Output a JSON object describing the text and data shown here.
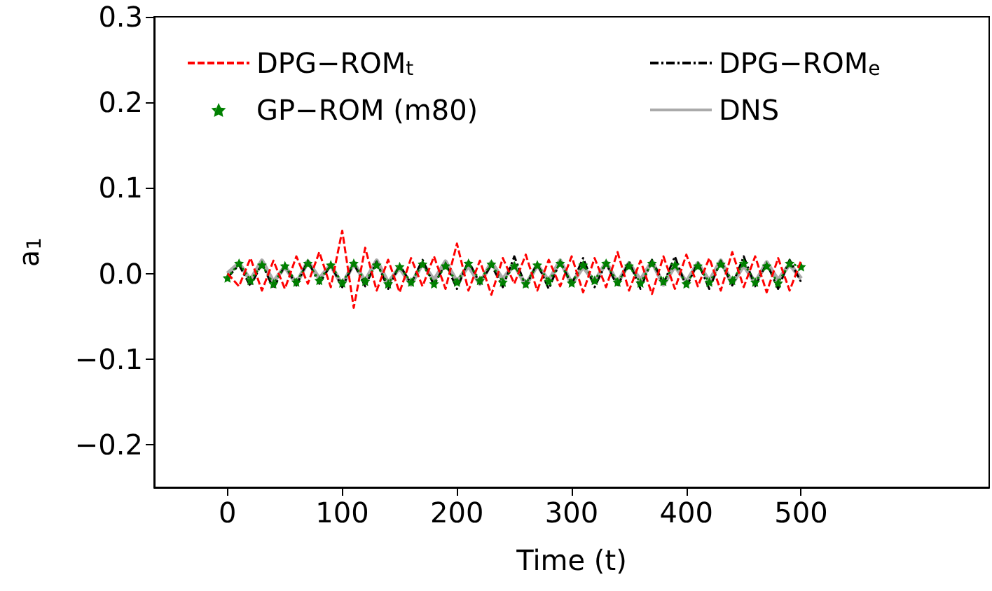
{
  "chart_data": {
    "type": "line",
    "xlabel": "Time (t)",
    "ylabel": "a$_{1}$",
    "xlim": [
      -64,
      664
    ],
    "xticks": [
      0,
      100,
      200,
      300,
      400,
      500
    ],
    "ylim": [
      -0.25,
      0.3
    ],
    "yticks": [
      {
        "value": -0.2,
        "label": "−0.2"
      },
      {
        "value": -0.1,
        "label": "−0.1"
      },
      {
        "value": 0,
        "label": "0.0"
      },
      {
        "value": 0.1,
        "label": "0.1"
      },
      {
        "value": 0.2,
        "label": "0.2"
      },
      {
        "value": 0.3,
        "label": "0.3"
      }
    ],
    "grid": false,
    "legend": "top",
    "marker": "none",
    "x": [
      0,
      10,
      20,
      30,
      40,
      50,
      60,
      70,
      80,
      90,
      100,
      110,
      120,
      130,
      140,
      150,
      160,
      170,
      180,
      190,
      200,
      210,
      220,
      230,
      240,
      250,
      260,
      270,
      280,
      290,
      300,
      310,
      320,
      330,
      340,
      350,
      360,
      370,
      380,
      390,
      400,
      410,
      420,
      430,
      440,
      450,
      460,
      470,
      480,
      490,
      500
    ],
    "series": [
      {
        "name": "DPG−ROM$_{t}$",
        "color": "#ff0000",
        "line_style": "dashed",
        "values": [
          0.0,
          -0.015,
          0.018,
          -0.02,
          0.015,
          -0.018,
          0.02,
          -0.012,
          0.025,
          -0.016,
          0.05,
          -0.04,
          0.03,
          -0.02,
          0.016,
          -0.022,
          0.018,
          -0.015,
          0.02,
          -0.018,
          0.035,
          -0.02,
          0.015,
          -0.025,
          0.018,
          -0.012,
          0.022,
          -0.02,
          0.016,
          -0.015,
          0.02,
          -0.022,
          0.018,
          -0.016,
          0.025,
          -0.02,
          0.015,
          -0.024,
          0.02,
          -0.018,
          0.022,
          -0.015,
          0.018,
          -0.02,
          0.025,
          -0.016,
          0.02,
          -0.022,
          0.018,
          -0.02,
          0.015
        ]
      },
      {
        "name": "GP−ROM (m80)",
        "color": "#008000",
        "line_style": "dotted",
        "marker": "star",
        "values": [
          -0.005,
          0.012,
          -0.008,
          0.01,
          -0.012,
          0.009,
          -0.01,
          0.012,
          -0.008,
          0.01,
          -0.011,
          0.012,
          -0.009,
          0.01,
          -0.012,
          0.008,
          -0.01,
          0.011,
          -0.012,
          0.009,
          -0.01,
          0.012,
          -0.008,
          0.011,
          -0.01,
          0.009,
          -0.012,
          0.01,
          -0.009,
          0.012,
          -0.011,
          0.01,
          -0.008,
          0.012,
          -0.01,
          0.009,
          -0.011,
          0.012,
          -0.009,
          0.01,
          -0.012,
          0.009,
          -0.01,
          0.011,
          -0.008,
          0.012,
          -0.01,
          0.009,
          -0.011,
          0.012,
          0.008
        ]
      },
      {
        "name": "DPG−ROM$_{e}$",
        "color": "#000000",
        "line_style": "dashdot",
        "values": [
          -0.005,
          0.01,
          -0.015,
          0.012,
          -0.018,
          0.01,
          -0.014,
          0.015,
          -0.012,
          0.01,
          -0.016,
          0.012,
          -0.015,
          0.014,
          -0.018,
          0.01,
          -0.012,
          0.016,
          -0.014,
          0.012,
          -0.018,
          0.015,
          -0.012,
          0.01,
          -0.016,
          0.02,
          -0.015,
          0.012,
          -0.018,
          0.014,
          -0.013,
          0.018,
          -0.016,
          0.012,
          -0.015,
          0.014,
          -0.018,
          0.016,
          -0.012,
          0.02,
          -0.016,
          0.013,
          -0.018,
          0.015,
          -0.014,
          0.02,
          -0.015,
          0.012,
          -0.018,
          0.016,
          -0.01
        ]
      },
      {
        "name": "DNS",
        "color": "#aaaaaa",
        "line_style": "solid",
        "values": [
          0.0,
          0.012,
          -0.008,
          0.015,
          -0.01,
          0.008,
          -0.012,
          0.014,
          -0.006,
          0.01,
          -0.014,
          0.012,
          -0.009,
          0.015,
          -0.011,
          0.007,
          -0.013,
          0.012,
          -0.008,
          0.014,
          -0.01,
          0.009,
          -0.012,
          0.013,
          -0.007,
          0.011,
          -0.014,
          0.01,
          -0.009,
          0.015,
          -0.012,
          0.008,
          -0.01,
          0.013,
          -0.011,
          0.012,
          -0.008,
          0.014,
          -0.013,
          0.009,
          -0.01,
          0.012,
          -0.009,
          0.015,
          -0.012,
          0.01,
          -0.011,
          0.013,
          -0.008,
          0.011,
          -0.006
        ]
      }
    ]
  }
}
